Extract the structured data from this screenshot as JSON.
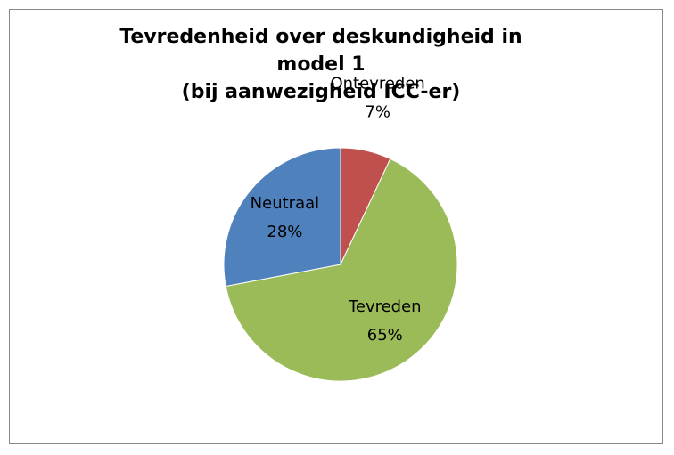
{
  "chart_data": {
    "type": "pie",
    "title": "Tevredenheid over deskundigheid in model 1",
    "subtitle": "(bij aanwezigheid ICC-er)",
    "categories": [
      "Ontevreden",
      "Tevreden",
      "Neutraal"
    ],
    "values": [
      7,
      65,
      28
    ],
    "value_labels": [
      "7%",
      "65%",
      "28%"
    ],
    "colors": [
      "#c0504d",
      "#9bbb59",
      "#4f81bd"
    ]
  }
}
